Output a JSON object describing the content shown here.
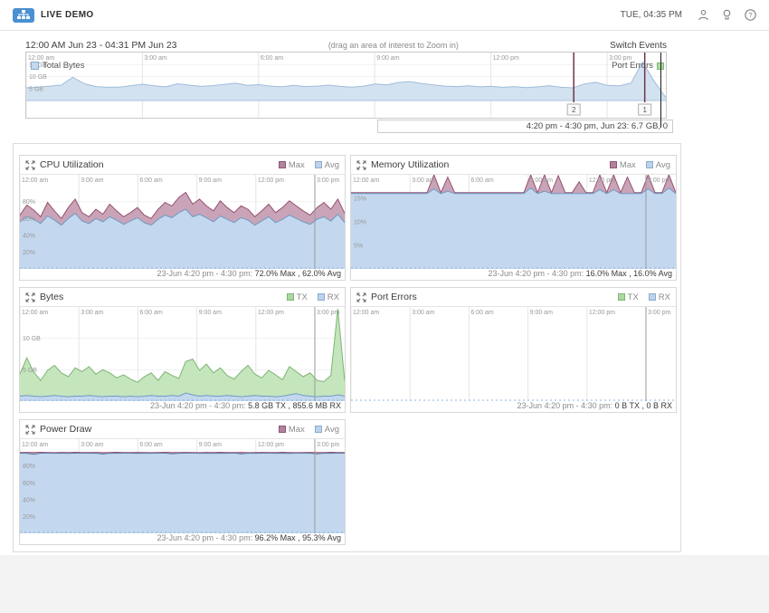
{
  "topbar": {
    "brand": "LIVE DEMO",
    "clock": "TUE, 04:35 PM",
    "icons": [
      "user-icon",
      "lightbulb-icon",
      "help-icon"
    ]
  },
  "colors": {
    "accent_blue": "#4a90d2",
    "max_swatch": "#b2829c",
    "avg_swatch": "#bdd3eb",
    "tx_swatch": "#abd8a2",
    "rx_swatch": "#bdd3eb",
    "event_marker": "#6e3448"
  },
  "timeline": {
    "range_label": "12:00 AM Jun 23 - 04:31 PM Jun 23",
    "hint": "(drag an area of interest to Zoom in)",
    "events_label": "Switch Events",
    "total_bytes_label": "Total Bytes",
    "port_errors_label": "Port Errors",
    "caption": "4:20 pm - 4:30 pm, Jun 23: 6.7 GB, 0"
  },
  "panels": [
    {
      "title": "CPU Utilization",
      "legend": [
        {
          "label": "Max",
          "color": "#b2829c"
        },
        {
          "label": "Avg",
          "color": "#bdd3eb"
        }
      ],
      "caption_prefix": "23-Jun 4:20 pm - 4:30 pm:",
      "caption_values": "72.0% Max , 62.0% Avg"
    },
    {
      "title": "Memory Utilization",
      "legend": [
        {
          "label": "Max",
          "color": "#b2829c"
        },
        {
          "label": "Avg",
          "color": "#bdd3eb"
        }
      ],
      "caption_prefix": "23-Jun 4:20 pm - 4:30 pm:",
      "caption_values": "16.0% Max , 16.0% Avg"
    },
    {
      "title": "Bytes",
      "legend": [
        {
          "label": "TX",
          "color": "#abd8a2"
        },
        {
          "label": "RX",
          "color": "#bdd3eb"
        }
      ],
      "caption_prefix": "23-Jun 4:20 pm - 4:30 pm:",
      "caption_values": "5.8 GB TX , 855.6 MB RX"
    },
    {
      "title": "Port Errors",
      "legend": [
        {
          "label": "TX",
          "color": "#abd8a2"
        },
        {
          "label": "RX",
          "color": "#bdd3eb"
        }
      ],
      "caption_prefix": "23-Jun 4:20 pm - 4:30 pm:",
      "caption_values": "0 B TX , 0 B RX"
    },
    {
      "title": "Power Draw",
      "legend": [
        {
          "label": "Max",
          "color": "#b2829c"
        },
        {
          "label": "Avg",
          "color": "#bdd3eb"
        }
      ],
      "caption_prefix": "23-Jun 4:20 pm - 4:30 pm:",
      "caption_values": "96.2% Max , 95.3% Avg"
    }
  ],
  "chart_data": [
    {
      "id": "timeline-total-bytes",
      "type": "area",
      "title": "Total Bytes",
      "xlabel": "time (12:00 AM - 4:31 PM Jun 23)",
      "ylabel": "GB",
      "ylim": [
        0,
        20
      ],
      "plot_frac": 0.74,
      "x_ticks": [
        {
          "label": "12:00 am",
          "pos": 0.0
        },
        {
          "label": "3:00 am",
          "pos": 0.1816
        },
        {
          "label": "6:00 am",
          "pos": 0.3633
        },
        {
          "label": "9:00 am",
          "pos": 0.5449
        },
        {
          "label": "12:00 pm",
          "pos": 0.7265
        },
        {
          "label": "3:00 pm",
          "pos": 0.9082
        }
      ],
      "y_ticks": [
        {
          "label": "15 GB",
          "value": 15
        },
        {
          "label": "10 GB",
          "value": 10
        },
        {
          "label": "5 GB",
          "value": 5
        }
      ],
      "series": [
        {
          "name": "Total Bytes",
          "fill": "#d3e2f1",
          "line": "#9fbcd8",
          "values": [
            5.3,
            5.6,
            6.0,
            6.4,
            9.7,
            7.0,
            5.8,
            5.5,
            5.6,
            6.2,
            6.8,
            6.1,
            5.7,
            7.0,
            6.4,
            5.9,
            6.2,
            6.7,
            7.2,
            6.3,
            6.6,
            6.0,
            5.7,
            6.3,
            5.8,
            6.0,
            6.4,
            5.9,
            5.6,
            6.0,
            6.9,
            6.5,
            7.5,
            7.9,
            7.1,
            6.5,
            6.0,
            5.8,
            6.1,
            5.7,
            5.9,
            5.5,
            5.8,
            5.4,
            5.7,
            6.2,
            5.5,
            5.3,
            6.9,
            7.6,
            6.3,
            6.1,
            7.2,
            16.0,
            8.0,
            1.2
          ]
        }
      ],
      "markers": [
        {
          "label": "2",
          "pos": 0.856
        },
        {
          "label": "1",
          "pos": 0.967
        }
      ]
    },
    {
      "id": "cpu-utilization",
      "type": "area",
      "title": "CPU Utilization",
      "ylabel": "%",
      "ylim": [
        0,
        112
      ],
      "baseline_dashed": true,
      "x_ticks": [
        {
          "label": "12:00 am",
          "pos": 0.0
        },
        {
          "label": "3:00 am",
          "pos": 0.1816
        },
        {
          "label": "6:00 am",
          "pos": 0.3633
        },
        {
          "label": "9:00 am",
          "pos": 0.5449
        },
        {
          "label": "12:00 pm",
          "pos": 0.7265
        },
        {
          "label": "3:00 pm",
          "pos": 0.9082
        }
      ],
      "y_ticks": [
        {
          "label": "80%",
          "value": 80
        },
        {
          "label": "60%",
          "value": 60
        },
        {
          "label": "40%",
          "value": 40
        },
        {
          "label": "20%",
          "value": 20
        }
      ],
      "cursor": {
        "pos": 0.908,
        "color": "#9a9a9a"
      },
      "series": [
        {
          "name": "Max",
          "fill": "#c9a4b8",
          "line": "#96506f",
          "values": [
            64,
            76,
            70,
            62,
            79,
            69,
            60,
            73,
            83,
            67,
            62,
            71,
            65,
            77,
            69,
            62,
            67,
            73,
            64,
            60,
            71,
            79,
            75,
            85,
            91,
            77,
            83,
            75,
            69,
            81,
            73,
            67,
            75,
            71,
            62,
            69,
            77,
            67,
            73,
            81,
            75,
            69,
            64,
            73,
            79,
            71,
            83,
            66
          ]
        },
        {
          "name": "Avg",
          "fill": "#c3d8ee",
          "line": "#6f9ac4",
          "values": [
            56,
            62,
            59,
            54,
            63,
            58,
            52,
            60,
            66,
            57,
            54,
            60,
            56,
            62,
            58,
            53,
            57,
            61,
            55,
            52,
            59,
            64,
            61,
            67,
            71,
            62,
            65,
            61,
            56,
            63,
            59,
            55,
            61,
            58,
            52,
            57,
            62,
            55,
            59,
            64,
            60,
            56,
            53,
            59,
            62,
            57,
            65,
            55
          ]
        }
      ]
    },
    {
      "id": "memory-utilization",
      "type": "area",
      "title": "Memory Utilization",
      "ylabel": "%",
      "ylim": [
        0,
        20
      ],
      "baseline_dashed": true,
      "x_ticks": [
        {
          "label": "12:00 am",
          "pos": 0.0
        },
        {
          "label": "3:00 am",
          "pos": 0.1816
        },
        {
          "label": "6:00 am",
          "pos": 0.3633
        },
        {
          "label": "9:00 am",
          "pos": 0.5449
        },
        {
          "label": "12:00 pm",
          "pos": 0.7265
        },
        {
          "label": "3:00 pm",
          "pos": 0.9082
        }
      ],
      "y_ticks": [
        {
          "label": "15%",
          "value": 15
        },
        {
          "label": "10%",
          "value": 10
        },
        {
          "label": "5%",
          "value": 5
        }
      ],
      "cursor": {
        "pos": 0.908,
        "color": "#9a9a9a"
      },
      "series": [
        {
          "name": "Max",
          "fill": "#c9a4b8",
          "line": "#96506f",
          "values": [
            16.2,
            16.2,
            16.2,
            16.2,
            16.2,
            16.2,
            16.2,
            16.2,
            16.2,
            16.2,
            16.2,
            16.2,
            21.5,
            16.2,
            19.5,
            16.2,
            16.2,
            16.2,
            16.2,
            16.2,
            16.2,
            16.2,
            16.2,
            16.2,
            16.2,
            16.2,
            26.5,
            16.2,
            20.5,
            16.2,
            19.8,
            16.2,
            16.2,
            18.5,
            16.2,
            16.2,
            21.8,
            16.2,
            22.5,
            16.2,
            19.5,
            16.2,
            16.2,
            23.5,
            16.2,
            16.2,
            25.5,
            16.2
          ]
        },
        {
          "name": "Avg",
          "fill": "#c3d8ee",
          "line": "#6f9ac4",
          "values": [
            16,
            16,
            16,
            16,
            16,
            16,
            16,
            16,
            16,
            16,
            16,
            16,
            17,
            16,
            16.5,
            16,
            16,
            16,
            16,
            16,
            16,
            16,
            16,
            16,
            16,
            16,
            17.2,
            16,
            16.5,
            16,
            16,
            16,
            16,
            16,
            16,
            16,
            16.8,
            16,
            16.8,
            16,
            16,
            16,
            16,
            17,
            16,
            16,
            17.2,
            16
          ]
        }
      ]
    },
    {
      "id": "bytes",
      "type": "area",
      "title": "Bytes",
      "ylabel": "GB",
      "ylim": [
        0,
        15
      ],
      "baseline_dashed": true,
      "x_ticks": [
        {
          "label": "12:00 am",
          "pos": 0.0
        },
        {
          "label": "3:00 am",
          "pos": 0.1816
        },
        {
          "label": "6:00 am",
          "pos": 0.3633
        },
        {
          "label": "9:00 am",
          "pos": 0.5449
        },
        {
          "label": "12:00 pm",
          "pos": 0.7265
        },
        {
          "label": "3:00 pm",
          "pos": 0.9082
        }
      ],
      "y_ticks": [
        {
          "label": "10 GB",
          "value": 10
        },
        {
          "label": "5 GB",
          "value": 5
        }
      ],
      "cursor": {
        "pos": 0.908,
        "color": "#9a9a9a"
      },
      "series": [
        {
          "name": "TX",
          "fill": "#c5e5bd",
          "line": "#7cb573",
          "values": [
            4.3,
            6.9,
            4.6,
            3.3,
            4.9,
            5.7,
            4.5,
            3.9,
            5.3,
            4.7,
            5.5,
            4.3,
            5.0,
            4.5,
            3.7,
            4.2,
            3.5,
            3.0,
            3.9,
            4.5,
            3.3,
            4.7,
            4.1,
            3.6,
            6.3,
            6.7,
            4.9,
            5.9,
            4.5,
            5.3,
            4.1,
            3.5,
            4.7,
            5.7,
            4.3,
            3.7,
            4.9,
            4.2,
            3.4,
            5.5,
            4.7,
            3.9,
            4.5,
            3.3,
            3.1,
            4.1,
            14.7,
            3.2
          ]
        },
        {
          "name": "RX",
          "fill": "#c3d8ee",
          "line": "#6f9ac4",
          "values": [
            0.8,
            0.9,
            0.8,
            0.7,
            0.8,
            0.9,
            0.8,
            0.7,
            0.8,
            0.8,
            0.9,
            0.8,
            0.7,
            0.8,
            0.8,
            0.7,
            0.8,
            0.7,
            0.8,
            0.9,
            0.8,
            0.8,
            0.9,
            0.8,
            1.3,
            1.0,
            0.8,
            0.9,
            0.8,
            0.8,
            0.9,
            0.8,
            0.7,
            0.8,
            0.9,
            0.8,
            0.8,
            0.7,
            0.8,
            1.0,
            1.2,
            0.9,
            0.8,
            0.7,
            0.8,
            0.8,
            1.0,
            0.8
          ]
        }
      ]
    },
    {
      "id": "port-errors",
      "type": "area",
      "title": "Port Errors",
      "ylabel": "errors",
      "ylim": [
        0,
        1
      ],
      "baseline_dashed": true,
      "x_ticks": [
        {
          "label": "12:00 am",
          "pos": 0.0
        },
        {
          "label": "3:00 am",
          "pos": 0.1816
        },
        {
          "label": "6:00 am",
          "pos": 0.3633
        },
        {
          "label": "9:00 am",
          "pos": 0.5449
        },
        {
          "label": "12:00 pm",
          "pos": 0.7265
        },
        {
          "label": "3:00 pm",
          "pos": 0.9082
        }
      ],
      "y_ticks": [],
      "cursor": {
        "pos": 0.908,
        "color": "#9a9a9a"
      },
      "series": [
        {
          "name": "TX",
          "fill": "#c5e5bd",
          "line": "#7cb573",
          "values": [
            0,
            0
          ]
        },
        {
          "name": "RX",
          "fill": "#c3d8ee",
          "line": "#6f9ac4",
          "values": [
            0,
            0
          ]
        }
      ]
    },
    {
      "id": "power-draw",
      "type": "area",
      "title": "Power Draw",
      "ylabel": "%",
      "ylim": [
        0,
        112
      ],
      "baseline_dashed": true,
      "x_ticks": [
        {
          "label": "12:00 am",
          "pos": 0.0
        },
        {
          "label": "3:00 am",
          "pos": 0.1816
        },
        {
          "label": "6:00 am",
          "pos": 0.3633
        },
        {
          "label": "9:00 am",
          "pos": 0.5449
        },
        {
          "label": "12:00 pm",
          "pos": 0.7265
        },
        {
          "label": "3:00 pm",
          "pos": 0.9082
        }
      ],
      "y_ticks": [
        {
          "label": "80%",
          "value": 80
        },
        {
          "label": "60%",
          "value": 60
        },
        {
          "label": "40%",
          "value": 40
        },
        {
          "label": "20%",
          "value": 20
        }
      ],
      "cursor": {
        "pos": 0.908,
        "color": "#9a9a9a"
      },
      "series": [
        {
          "name": "Max",
          "fill": "#c9a4b8",
          "line": "#96506f",
          "values": [
            96.2,
            96.3,
            96.1,
            96.4,
            96.2,
            96.0,
            96.3,
            96.2,
            96.4,
            96.1,
            96.2,
            96.3,
            96.0,
            96.2,
            96.4,
            96.2,
            96.1,
            96.3,
            96.2,
            96.0,
            96.2,
            96.4,
            96.1,
            96.2,
            96.3,
            96.2,
            96.0,
            96.3,
            96.2,
            96.4,
            96.2,
            96.1,
            96.3,
            96.0,
            96.2,
            96.3,
            96.1,
            96.2,
            96.4,
            96.2,
            96.0,
            96.2,
            96.3,
            96.1,
            96.2,
            96.4,
            96.2,
            96.1
          ]
        },
        {
          "name": "Avg",
          "fill": "#c3d8ee",
          "line": "#5f7fa8",
          "values": [
            95.3,
            95.2,
            94.0,
            95.3,
            95.4,
            95.2,
            95.3,
            95.1,
            95.3,
            95.4,
            95.2,
            95.3,
            94.2,
            95.3,
            95.2,
            95.4,
            95.3,
            95.1,
            95.3,
            95.2,
            95.4,
            95.3,
            94.5,
            95.2,
            95.3,
            95.4,
            95.2,
            95.3,
            95.1,
            95.3,
            95.2,
            95.4,
            94.3,
            95.3,
            95.2,
            95.3,
            95.4,
            95.2,
            95.3,
            95.1,
            95.3,
            95.4,
            95.2,
            94.6,
            95.3,
            95.2,
            95.4,
            95.3
          ]
        }
      ]
    }
  ]
}
